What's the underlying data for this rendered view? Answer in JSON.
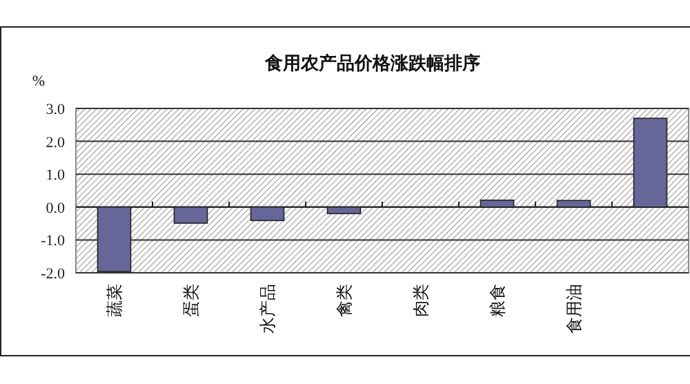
{
  "chart_data": {
    "type": "bar",
    "title": "食用农产品价格涨跌幅排序",
    "ylabel": "%",
    "categories": [
      "蔬菜",
      "蛋类",
      "水产品",
      "禽类",
      "肉类",
      "粮食",
      "食用油",
      null
    ],
    "values": [
      -1.96,
      -0.49,
      -0.41,
      -0.2,
      0,
      0.21,
      0.2,
      2.7
    ],
    "color": "#666699",
    "ylim": [
      -2,
      3
    ],
    "yticks": [
      {
        "value": -2,
        "label": "-2.0"
      },
      {
        "value": -1,
        "label": "-1.0"
      },
      {
        "value": 0,
        "label": "0.0"
      },
      {
        "value": 1,
        "label": "1.0"
      },
      {
        "value": 2,
        "label": "2.0"
      },
      {
        "value": 3,
        "label": "3.0"
      }
    ],
    "grid": "y"
  }
}
